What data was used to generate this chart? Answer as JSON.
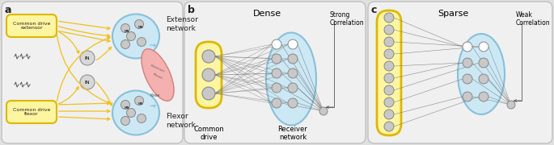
{
  "bg_color": "#e0e0e0",
  "panel_bg": "#f0f0f0",
  "yellow_border": "#ddb800",
  "yellow_fill": "#fef5a0",
  "blue_fill": "#cce8f5",
  "blue_border": "#88c0d8",
  "node_fill": "#c8c8c8",
  "node_edge": "#909090",
  "white_node": "#ffffff",
  "line_color": "#808080",
  "arrow_yellow": "#f0c018",
  "text_dark": "#222222",
  "pink_fill": "#f5b0b0",
  "pink_edge": "#d08080",
  "panel_a": "a",
  "panel_b": "b",
  "panel_c": "c",
  "title_b": "Dense",
  "title_c": "Sparse",
  "label_cd_b": "Common\ndrive",
  "label_rn_b": "Receiver\nnetwork",
  "label_strong": "Strong\nCorrelation",
  "label_weak": "Weak\nCorrelation",
  "label_ext": "Extensor\nnetwork",
  "label_flex": "Flexor\nnetwork",
  "label_cde": "Common drive\nextensor",
  "label_cdf": "Common drive\nflexor"
}
